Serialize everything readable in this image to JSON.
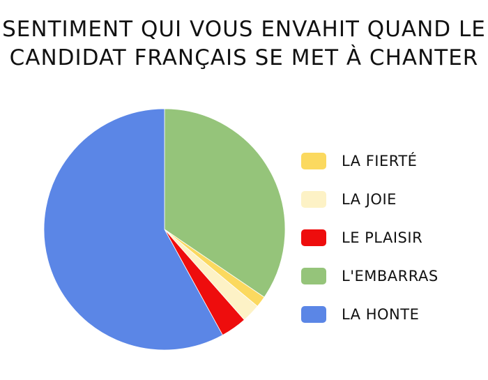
{
  "chart_data": {
    "type": "pie",
    "title_lines": [
      "SENTIMENT QUI VOUS ENVAHIT QUAND LE",
      "CANDIDAT FRANÇAIS SE MET À CHANTER"
    ],
    "start_angle_deg": 0,
    "direction": "clockwise",
    "slices": [
      {
        "label": "L'EMBARRAS",
        "value": 34.5,
        "color": "#95c47a"
      },
      {
        "label": "LA FIERTÉ",
        "value": 1.5,
        "color": "#fbd95f"
      },
      {
        "label": "LA JOIE",
        "value": 2.5,
        "color": "#fdf2c6"
      },
      {
        "label": "LE PLAISIR",
        "value": 3.5,
        "color": "#ee0d0d"
      },
      {
        "label": "LA HONTE",
        "value": 58.0,
        "color": "#5b86e6"
      }
    ],
    "legend": [
      {
        "label": "LA FIERTÉ",
        "color": "#fbd95f"
      },
      {
        "label": "LA JOIE",
        "color": "#fdf2c6"
      },
      {
        "label": "LE PLAISIR",
        "color": "#ee0d0d"
      },
      {
        "label": "L'EMBARRAS",
        "color": "#95c47a"
      },
      {
        "label": "LA HONTE",
        "color": "#5b86e6"
      }
    ],
    "legend_position": "right"
  }
}
